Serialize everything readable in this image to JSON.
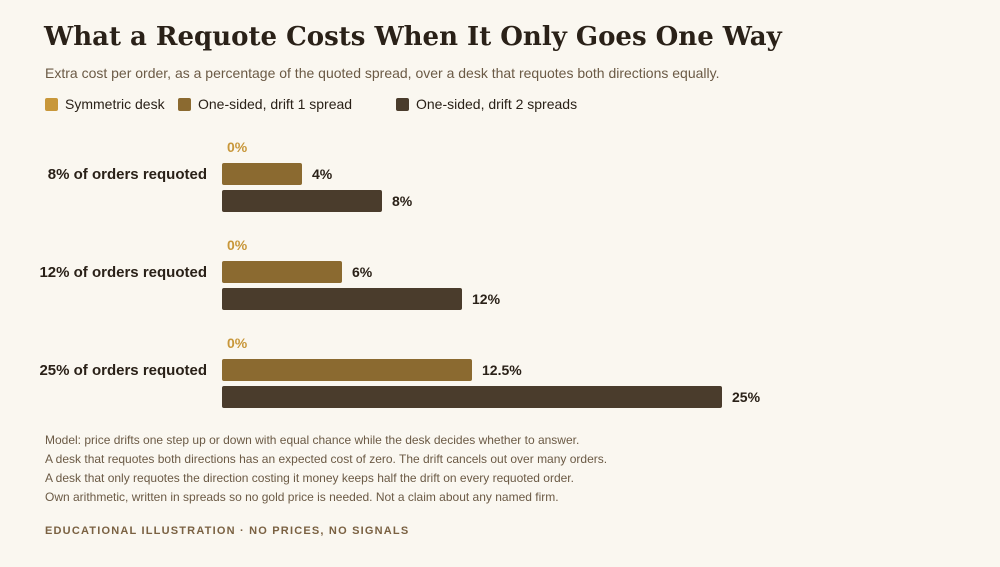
{
  "title": "What a Requote Costs When It Only Goes One Way",
  "subtitle": "Extra cost per order, as a percentage of the quoted spread, over a desk that requotes both directions equally.",
  "legend": [
    {
      "label": "Symmetric desk",
      "color": "#c8973a"
    },
    {
      "label": "One-sided, drift 1 spread",
      "color": "#8b6a30"
    },
    {
      "label": "One-sided, drift 2 spreads",
      "color": "#4a3c2c"
    }
  ],
  "chart_data": {
    "type": "bar",
    "orientation": "horizontal",
    "categories": [
      "8% of orders requoted",
      "12% of orders requoted",
      "25% of orders requoted"
    ],
    "series": [
      {
        "name": "Symmetric desk",
        "values": [
          0,
          0,
          0
        ],
        "labels": [
          "0%",
          "0%",
          "0%"
        ],
        "color": "#c8973a"
      },
      {
        "name": "One-sided, drift 1 spread",
        "values": [
          4,
          6,
          12.5
        ],
        "labels": [
          "4%",
          "6%",
          "12.5%"
        ],
        "color": "#8b6a30"
      },
      {
        "name": "One-sided, drift 2 spreads",
        "values": [
          8,
          12,
          25
        ],
        "labels": [
          "8%",
          "12%",
          "25%"
        ],
        "color": "#4a3c2c"
      }
    ],
    "xlim": [
      0,
      25
    ],
    "grid": false,
    "legend_position": "top"
  },
  "footnotes": [
    "Model: price drifts one step up or down with equal chance while the desk decides whether to answer.",
    "A desk that requotes both directions has an expected cost of zero. The drift cancels out over many orders.",
    "A desk that only requotes the direction costing it money keeps half the drift on every requoted order.",
    "Own arithmetic, written in spreads so no gold price is needed. Not a claim about any named firm."
  ],
  "footer_tag": "EDUCATIONAL ILLUSTRATION · NO PRICES, NO SIGNALS"
}
